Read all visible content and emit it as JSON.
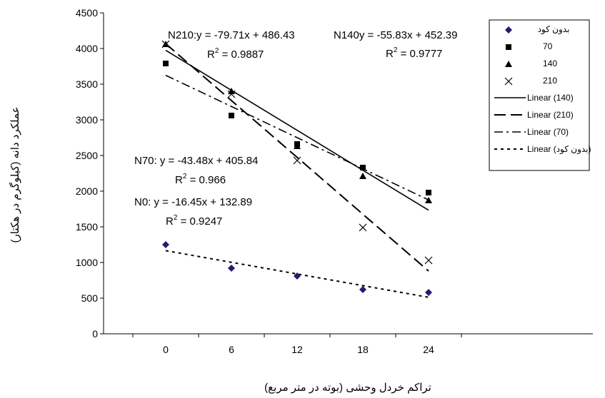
{
  "chart_data": {
    "type": "scatter",
    "xlabel": "تراکم خردل وحشی (بوته در متر مربع)",
    "ylabel": "عملکرد دانه (کیلوگرم در هکتار)",
    "x_ticks": [
      "0",
      "6",
      "12",
      "18",
      "24"
    ],
    "y_ticks": [
      "0",
      "500",
      "1000",
      "1500",
      "2000",
      "2500",
      "3000",
      "3500",
      "4000",
      "4500"
    ],
    "xlim": [
      -3,
      27
    ],
    "ylim": [
      0,
      4500
    ],
    "grid": false,
    "legend_placement": "top-right",
    "series": [
      {
        "name": "بدون کود",
        "marker": "diamond",
        "color": "#1f1f6e",
        "x": [
          0,
          6,
          12,
          18,
          24
        ],
        "y": [
          1250,
          920,
          810,
          620,
          580
        ]
      },
      {
        "name": "70",
        "marker": "square",
        "color": "#000000",
        "x": [
          0,
          6,
          12,
          18,
          24
        ],
        "y": [
          3790,
          3060,
          2660,
          2330,
          1980
        ]
      },
      {
        "name": "140",
        "marker": "triangle",
        "color": "#000000",
        "x": [
          0,
          6,
          12,
          18,
          24
        ],
        "y": [
          4060,
          3400,
          2630,
          2210,
          1870
        ]
      },
      {
        "name": "210",
        "marker": "x",
        "color": "#000000",
        "x": [
          0,
          6,
          12,
          18,
          24
        ],
        "y": [
          4060,
          3360,
          2430,
          1490,
          1030
        ]
      }
    ],
    "trendlines": [
      {
        "name": "Linear (140)",
        "dash": "solid",
        "x": [
          0,
          24
        ],
        "y": [
          3974,
          1733
        ]
      },
      {
        "name": "Linear (210)",
        "dash": "long-dash",
        "x": [
          0,
          24
        ],
        "y": [
          4067,
          880
        ]
      },
      {
        "name": "Linear (70)",
        "dash": "dash-dot",
        "x": [
          0,
          24
        ],
        "y": [
          3624,
          1877
        ]
      },
      {
        "name": "Linear (بدون کود)",
        "dash": "dotted",
        "x": [
          0,
          24
        ],
        "y": [
          1166,
          512
        ]
      }
    ],
    "annotations": [
      {
        "id": "n210",
        "eq": "N210:y = -79.71x + 486.43",
        "r2": "0.9887"
      },
      {
        "id": "n140",
        "eq": "N140y = -55.83x + 452.39",
        "r2": "0.9777"
      },
      {
        "id": "n70",
        "eq": "N70: y = -43.48x + 405.84",
        "r2": "0.966"
      },
      {
        "id": "n0",
        "eq": "N0: y = -16.45x + 132.89",
        "r2": "0.9247"
      }
    ],
    "r2_label": "R",
    "r2_sup": "2",
    "r2_eq": " = "
  }
}
